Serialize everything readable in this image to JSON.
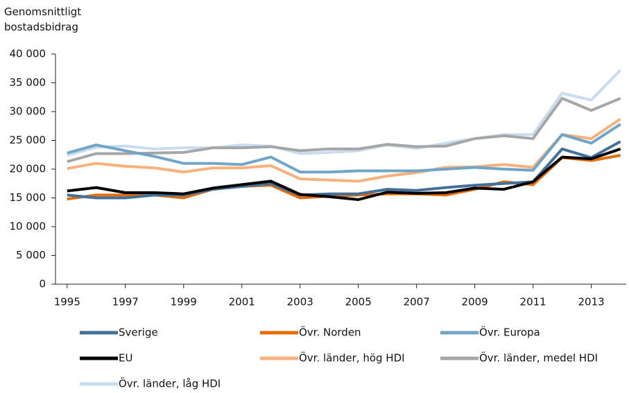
{
  "chart_data": {
    "type": "line",
    "ylabel": "Genomsnittligt bostadsbidrag",
    "x": [
      1995,
      1996,
      1997,
      1998,
      1999,
      2000,
      2001,
      2002,
      2003,
      2004,
      2005,
      2006,
      2007,
      2008,
      2009,
      2010,
      2011,
      2012,
      2013,
      2014
    ],
    "xlim": [
      1994.6,
      2014.2
    ],
    "xticks": [
      1995,
      1997,
      1999,
      2001,
      2003,
      2005,
      2007,
      2009,
      2011,
      2013
    ],
    "ylim": [
      0,
      40000
    ],
    "yticks": [
      0,
      {
        "value": 5000,
        "label": "5 000"
      },
      {
        "value": 10000,
        "label": "10 000"
      },
      {
        "value": 15000,
        "label": "15 000"
      },
      {
        "value": 20000,
        "label": "20 000"
      },
      {
        "value": 25000,
        "label": "25 000"
      },
      {
        "value": 30000,
        "label": "30 000"
      },
      {
        "value": 35000,
        "label": "35 000"
      },
      {
        "value": 40000,
        "label": "40 000"
      }
    ],
    "grid": false,
    "legend": "bottom",
    "series": [
      {
        "name": "Sverige",
        "color": "#41709a",
        "values": [
          15500,
          15000,
          15000,
          15500,
          15500,
          16500,
          17000,
          17500,
          15500,
          15700,
          15700,
          16500,
          16300,
          16800,
          17200,
          17500,
          17800,
          23500,
          22000,
          24800
        ]
      },
      {
        "name": "Övr. Norden",
        "color": "#e46c0a",
        "values": [
          14800,
          15500,
          15500,
          15500,
          15000,
          16500,
          17000,
          17200,
          15000,
          15300,
          15500,
          15700,
          15700,
          15500,
          16500,
          17800,
          17300,
          22000,
          21500,
          22400
        ]
      },
      {
        "name": "Övr. Europa",
        "color": "#6fa6c8",
        "values": [
          22800,
          24200,
          23200,
          22200,
          21000,
          21000,
          20800,
          22100,
          19500,
          19500,
          19700,
          19700,
          19700,
          20000,
          20300,
          20000,
          19800,
          26000,
          24500,
          27800
        ]
      },
      {
        "name": "EU",
        "color": "#000000",
        "values": [
          16200,
          16800,
          15900,
          15900,
          15700,
          16700,
          17300,
          17900,
          15600,
          15200,
          14700,
          16000,
          15800,
          15900,
          16700,
          16500,
          17800,
          22100,
          21800,
          23500
        ]
      },
      {
        "name": "Övr. länder, hög HDI",
        "color": "#f8b17b",
        "values": [
          20100,
          21000,
          20500,
          20200,
          19500,
          20200,
          20200,
          20600,
          18300,
          18100,
          17900,
          18800,
          19400,
          20300,
          20400,
          20800,
          20300,
          26000,
          25300,
          28700
        ]
      },
      {
        "name": "Övr. länder, medel HDI",
        "color": "#a6a6a6",
        "values": [
          21300,
          22700,
          22700,
          22800,
          22900,
          23700,
          23700,
          23900,
          23200,
          23500,
          23500,
          24300,
          23900,
          24000,
          25300,
          25800,
          25300,
          32300,
          30200,
          32300
        ]
      },
      {
        "name": "Övr. länder, låg HDI",
        "color": "#c6dcf0",
        "values": [
          22400,
          23800,
          24000,
          23500,
          23700,
          23700,
          24200,
          24000,
          22700,
          22900,
          23200,
          24200,
          23600,
          24500,
          25300,
          26000,
          26000,
          33200,
          32000,
          37200
        ]
      }
    ]
  }
}
